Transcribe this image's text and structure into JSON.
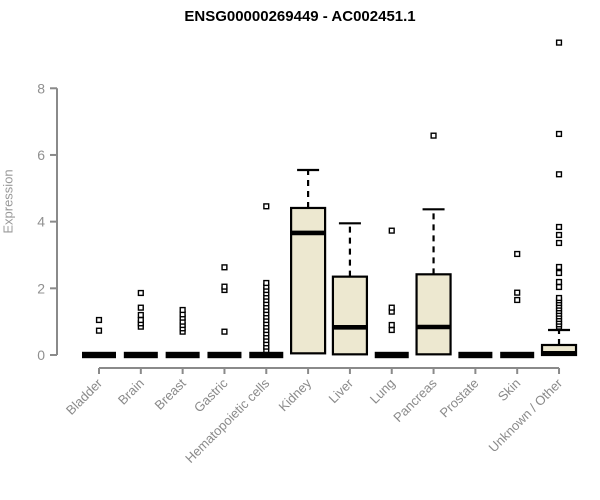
{
  "chart_data": {
    "type": "boxplot",
    "title": "ENSG00000269449 - AC002451.1",
    "ylabel": "Expression",
    "xlabel": "",
    "yticks": [
      0,
      2,
      4,
      6,
      8
    ],
    "ylim": [
      0,
      8
    ],
    "grid": false,
    "legend": "none",
    "box_fill": "#EDE8D0",
    "box_stroke": "#000000",
    "axis_color": "#8a8a8a",
    "categories": [
      "Bladder",
      "Brain",
      "Breast",
      "Gastric",
      "Hematopoietic cells",
      "Kidney",
      "Liver",
      "Lung",
      "Pancreas",
      "Prostate",
      "Skin",
      "Unknown / Other"
    ],
    "series": [
      {
        "name": "Bladder",
        "q1": 0,
        "median": 0,
        "q3": 0,
        "whisker_low": 0,
        "whisker_high": 0,
        "outliers": [
          0.73,
          1.05
        ]
      },
      {
        "name": "Brain",
        "q1": 0,
        "median": 0,
        "q3": 0,
        "whisker_low": 0,
        "whisker_high": 0,
        "outliers": [
          0.85,
          0.95,
          1.05,
          1.2,
          1.42,
          1.86
        ]
      },
      {
        "name": "Breast",
        "q1": 0,
        "median": 0,
        "q3": 0,
        "whisker_low": 0,
        "whisker_high": 0,
        "outliers": [
          0.7,
          0.8,
          0.9,
          1.0,
          1.12,
          1.22,
          1.35
        ]
      },
      {
        "name": "Gastric",
        "q1": 0,
        "median": 0,
        "q3": 0,
        "whisker_low": 0,
        "whisker_high": 0,
        "outliers": [
          0.7,
          1.95,
          2.05,
          2.63
        ]
      },
      {
        "name": "Hematopoietic cells",
        "q1": 0,
        "median": 0,
        "q3": 0,
        "whisker_low": 0,
        "whisker_high": 0,
        "outliers": [
          0.15,
          0.25,
          0.35,
          0.45,
          0.55,
          0.65,
          0.75,
          0.85,
          0.95,
          1.05,
          1.15,
          1.25,
          1.35,
          1.45,
          1.55,
          1.65,
          1.75,
          1.85,
          1.95,
          2.05,
          2.16,
          4.46
        ]
      },
      {
        "name": "Kidney",
        "q1": 0.05,
        "median": 3.66,
        "q3": 4.41,
        "whisker_low": 0.05,
        "whisker_high": 5.55,
        "outliers": []
      },
      {
        "name": "Liver",
        "q1": 0.02,
        "median": 0.83,
        "q3": 2.35,
        "whisker_low": 0.02,
        "whisker_high": 3.95,
        "outliers": []
      },
      {
        "name": "Lung",
        "q1": 0,
        "median": 0,
        "q3": 0,
        "whisker_low": 0,
        "whisker_high": 0,
        "outliers": [
          0.75,
          0.9,
          1.3,
          1.42,
          3.73
        ]
      },
      {
        "name": "Pancreas",
        "q1": 0.02,
        "median": 0.84,
        "q3": 2.42,
        "whisker_low": 0.02,
        "whisker_high": 4.37,
        "outliers": [
          6.58
        ]
      },
      {
        "name": "Prostate",
        "q1": 0,
        "median": 0,
        "q3": 0,
        "whisker_low": 0,
        "whisker_high": 0,
        "outliers": []
      },
      {
        "name": "Skin",
        "q1": 0,
        "median": 0,
        "q3": 0,
        "whisker_low": 0,
        "whisker_high": 0,
        "outliers": [
          1.65,
          1.87,
          3.03
        ]
      },
      {
        "name": "Unknown / Other",
        "q1": 0,
        "median": 0.05,
        "q3": 0.3,
        "whisker_low": 0,
        "whisker_high": 0.75,
        "outliers": [
          0.85,
          0.92,
          1.0,
          1.08,
          1.16,
          1.24,
          1.32,
          1.4,
          1.48,
          1.56,
          1.64,
          1.71,
          2.04,
          2.19,
          2.46,
          2.64,
          3.36,
          3.6,
          3.84,
          5.42,
          6.63,
          9.37
        ]
      }
    ]
  }
}
